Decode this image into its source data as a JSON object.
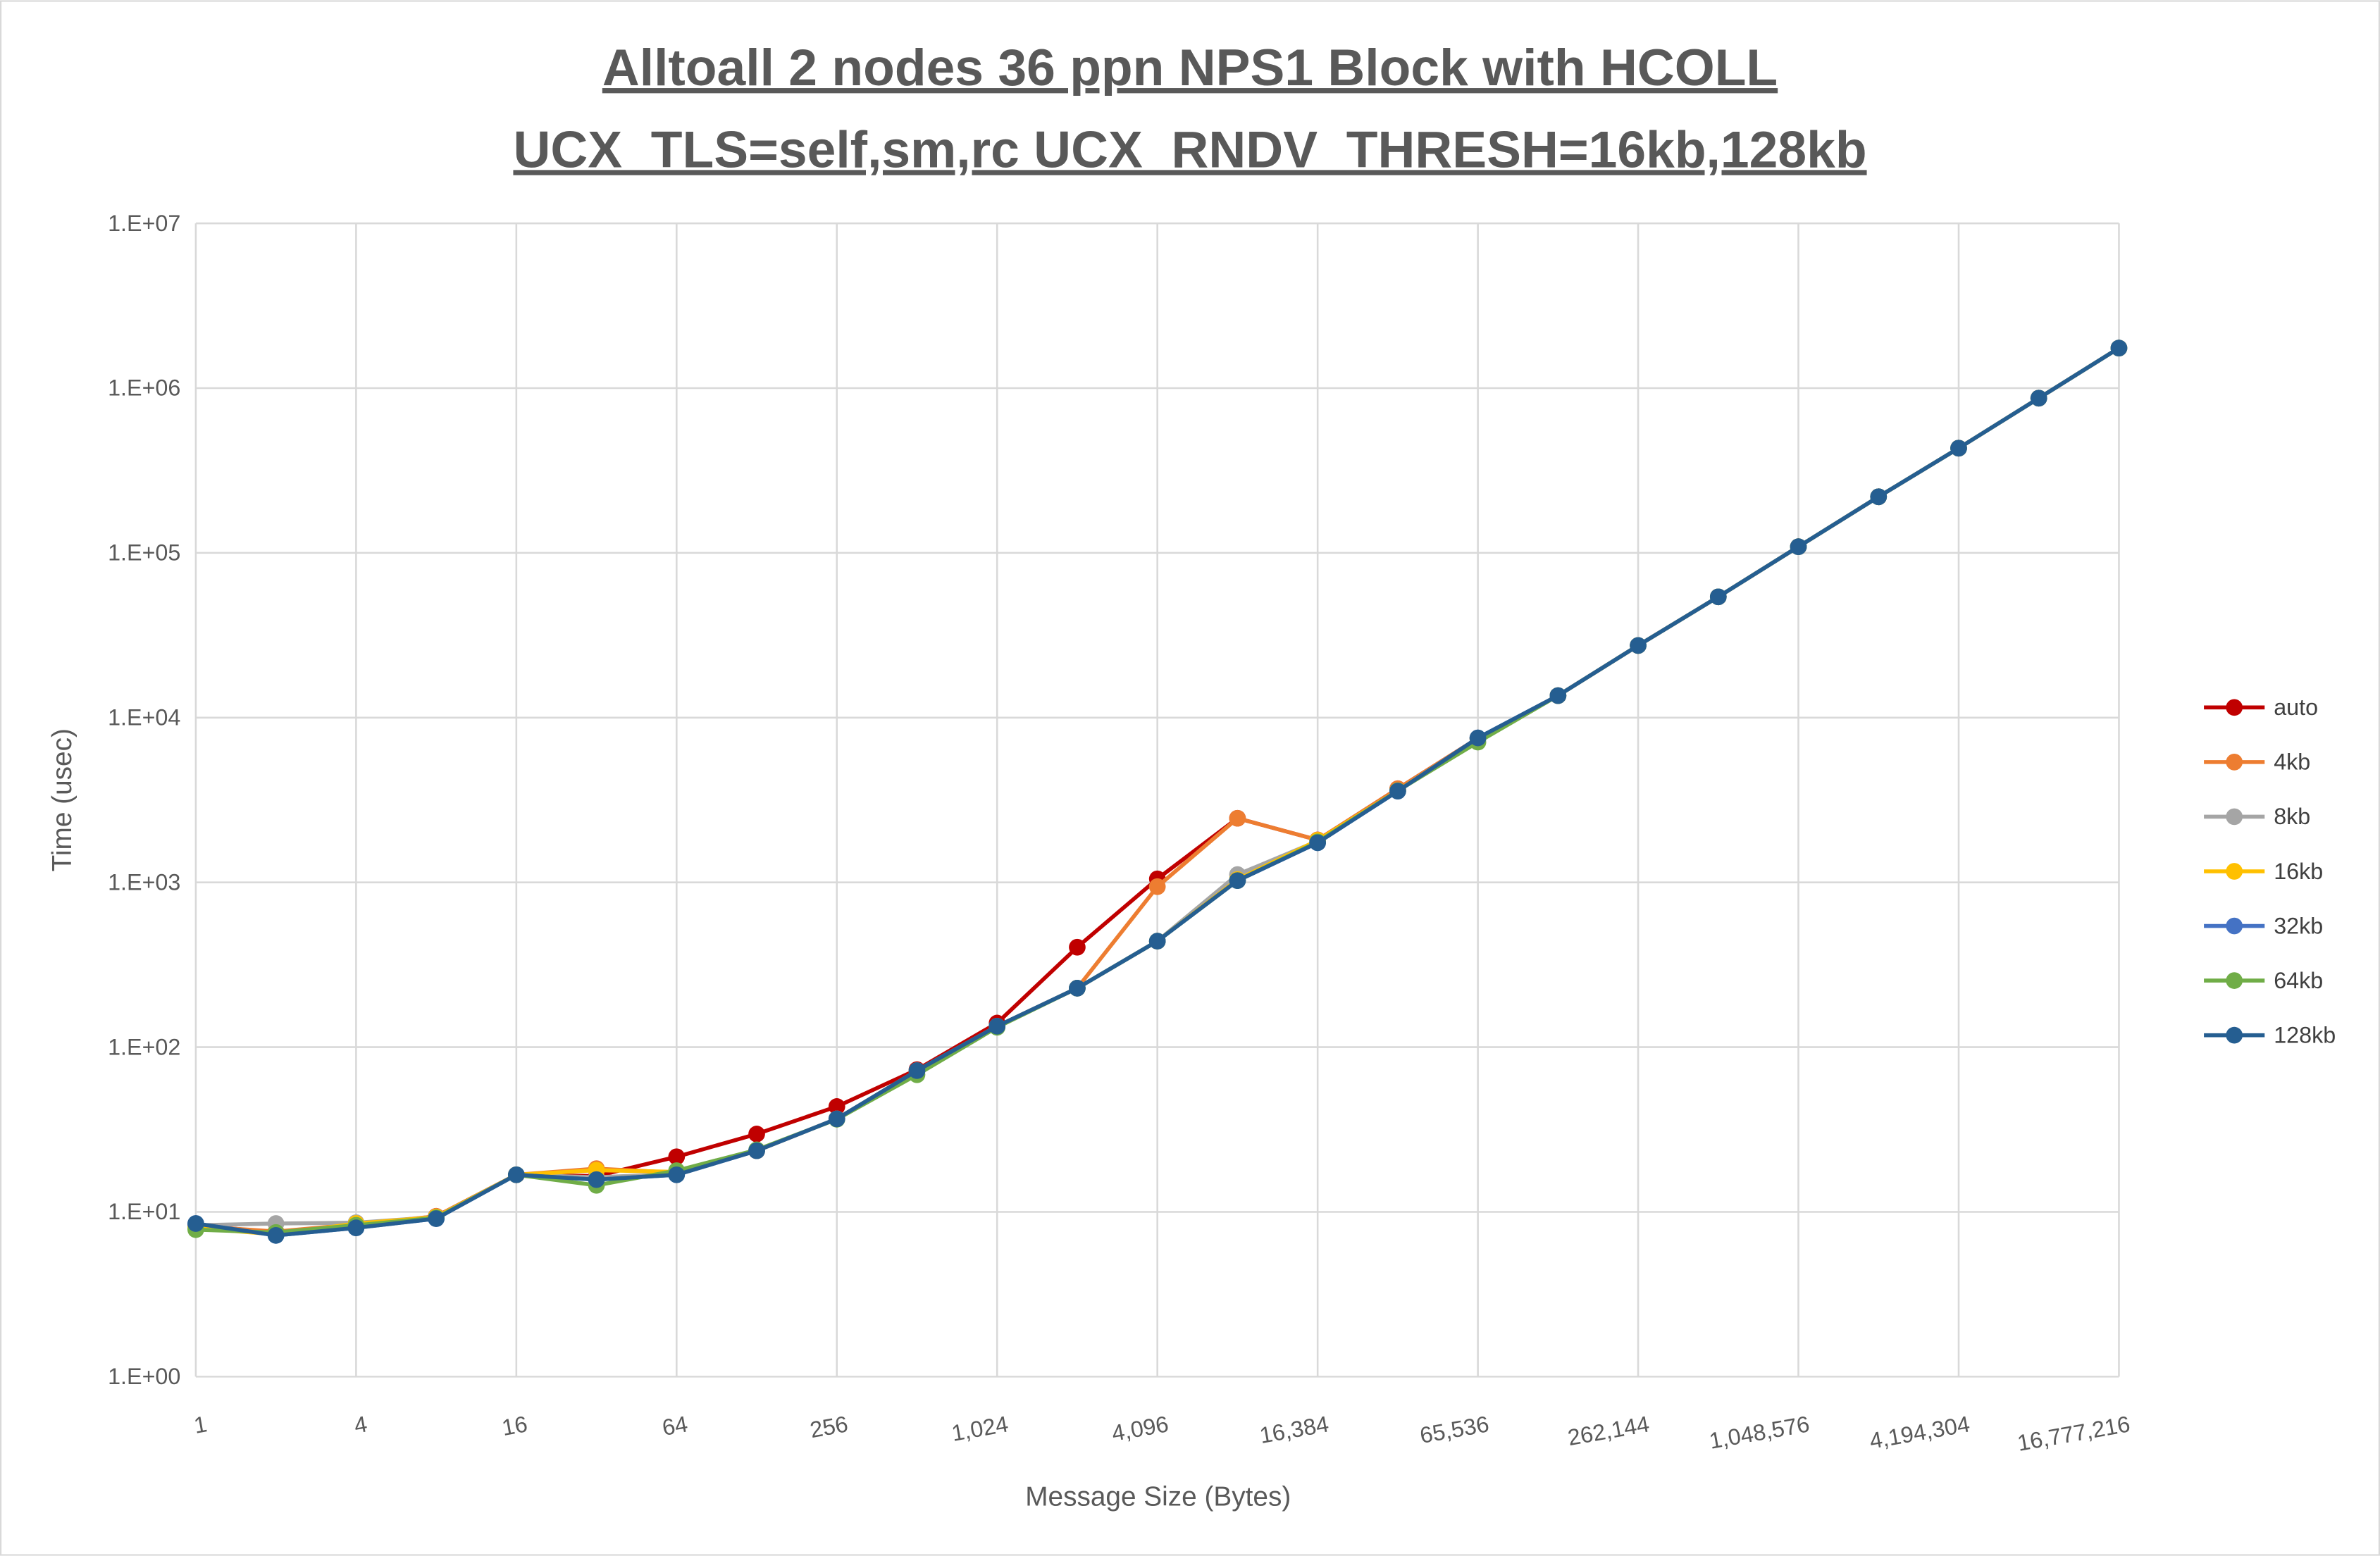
{
  "chart_data": {
    "type": "line",
    "title": [
      "Alltoall 2 nodes 36 ppn NPS1 Block with HCOLL",
      "UCX_TLS=self,sm,rc UCX_RNDV_THRESH=16kb,128kb"
    ],
    "xlabel": "Message Size (Bytes)",
    "ylabel": "Time (usec)",
    "x_scale": "log2",
    "y_scale": "log10",
    "ylim": [
      1,
      10000000
    ],
    "grid": true,
    "legend_position": "right",
    "x": [
      1,
      2,
      4,
      8,
      16,
      32,
      64,
      128,
      256,
      512,
      1024,
      2048,
      4096,
      8192,
      16384,
      32768,
      65536,
      131072,
      262144,
      524288,
      1048576,
      2097152,
      4194304,
      8388608,
      16777216
    ],
    "x_tick_labels": [
      "1",
      "4",
      "16",
      "64",
      "256",
      "1,024",
      "4,096",
      "16,384",
      "65,536",
      "262,144",
      "1,048,576",
      "4,194,304",
      "16,777,216"
    ],
    "y_tick_labels": [
      "1.E+00",
      "1.E+01",
      "1.E+02",
      "1.E+03",
      "1.E+04",
      "1.E+05",
      "1.E+06",
      "1.E+07"
    ],
    "series": [
      {
        "name": "auto",
        "color": "#C00000",
        "values": [
          8.3,
          7.5,
          8.3,
          9.4,
          16.8,
          16.5,
          21.6,
          29.7,
          43.6,
          73,
          140,
          404,
          1050,
          2450,
          1810,
          3700,
          7500,
          13600,
          27400,
          54100,
          109000,
          219000,
          432000,
          869000,
          1750000
        ]
      },
      {
        "name": "4kb",
        "color": "#ED7D31",
        "values": [
          8.2,
          7.6,
          8.4,
          9.4,
          16.8,
          18.3,
          17.3,
          23.5,
          36.7,
          72,
          134,
          228,
          942,
          2450,
          1810,
          3700,
          7500,
          13600,
          27400,
          54100,
          109000,
          219000,
          432000,
          869000,
          1750000
        ]
      },
      {
        "name": "8kb",
        "color": "#A5A5A5",
        "values": [
          8.3,
          8.5,
          8.6,
          9.3,
          16.8,
          16.2,
          17.0,
          23.5,
          36.7,
          72,
          134,
          228,
          440,
          1115,
          1780,
          3600,
          7500,
          13600,
          27400,
          54100,
          109000,
          219000,
          432000,
          869000,
          1750000
        ]
      },
      {
        "name": "16kb",
        "color": "#FFC000",
        "values": [
          8.0,
          7.3,
          8.5,
          9.3,
          16.8,
          17.9,
          17.5,
          23.5,
          36.7,
          72,
          134,
          228,
          440,
          1040,
          1800,
          3600,
          7500,
          13600,
          27400,
          54100,
          109000,
          219000,
          432000,
          869000,
          1750000
        ]
      },
      {
        "name": "32kb",
        "color": "#4472C4",
        "values": [
          8.5,
          7.2,
          8.0,
          9.1,
          16.8,
          15.7,
          16.8,
          23.5,
          36.7,
          72,
          134,
          228,
          440,
          1025,
          1740,
          3580,
          7530,
          13600,
          27400,
          54100,
          109000,
          219000,
          432000,
          869000,
          1750000
        ]
      },
      {
        "name": "64kb",
        "color": "#70AD47",
        "values": [
          7.8,
          7.5,
          8.3,
          9.2,
          16.8,
          14.5,
          17.8,
          23.8,
          36.5,
          68,
          132,
          228,
          440,
          1025,
          1760,
          3600,
          7100,
          13600,
          27400,
          54100,
          109000,
          219000,
          432000,
          869000,
          1750000
        ]
      },
      {
        "name": "128kb",
        "color": "#255E91",
        "values": [
          8.5,
          7.2,
          8.0,
          9.1,
          16.8,
          15.7,
          16.8,
          23.5,
          36.7,
          72,
          134,
          228,
          440,
          1025,
          1740,
          3580,
          7530,
          13600,
          27400,
          54100,
          109000,
          219000,
          432000,
          869000,
          1750000
        ]
      }
    ]
  }
}
